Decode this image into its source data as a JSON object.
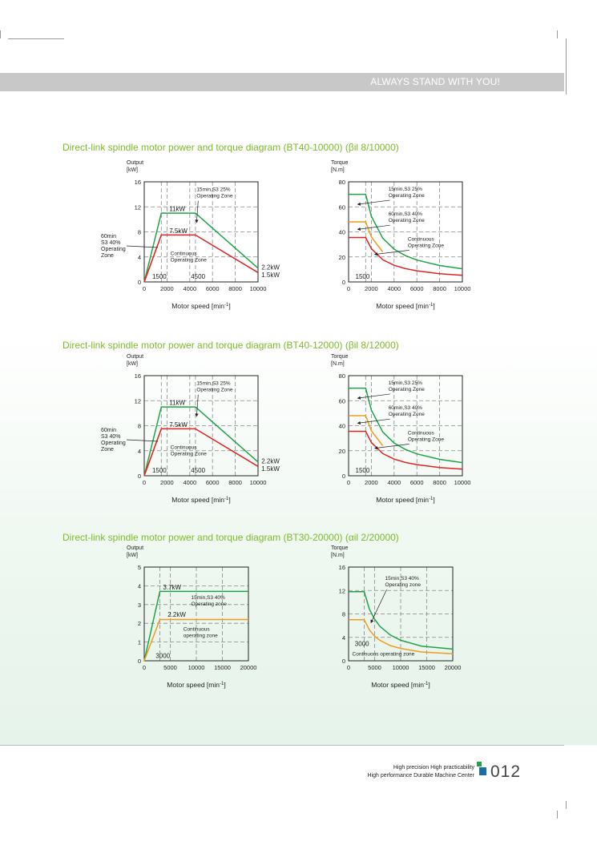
{
  "banner": {
    "slogan": "ALWAYS STAND WITH YOU!"
  },
  "sections": [
    {
      "heading": "Direct-link spindle motor power and torque diagram (BT40-10000) (βil 8/10000)"
    },
    {
      "heading": "Direct-link spindle motor power and torque diagram (BT40-12000) (βil 8/12000)"
    },
    {
      "heading": "Direct-link spindle motor power and torque diagram (BT30-20000) (αil 2/20000)"
    }
  ],
  "footer": {
    "tagline1": "High precision High practicability",
    "tagline2": "High performance Durable Machine Center",
    "page_number": "012"
  },
  "colors": {
    "green": "#1fa348",
    "orange": "#f29a1e",
    "red": "#e02424",
    "heading": "#7dbb2a"
  },
  "chart_data": [
    {
      "type": "line",
      "title": "Output",
      "ylabel_top": "Output",
      "ylabel_unit": "[kW]",
      "xlabel": "Motor speed [min",
      "xlabel_sup": "-1",
      "xlabel_end": "]",
      "xlim": [
        0,
        10000
      ],
      "ylim": [
        0,
        16
      ],
      "xticks": [
        0,
        2000,
        4000,
        6000,
        8000,
        10000
      ],
      "yticks": [
        0,
        4,
        8,
        12,
        16
      ],
      "vlines": [
        1500,
        2000,
        4000,
        4500,
        6000,
        8000
      ],
      "hlines": [
        4,
        8,
        12
      ],
      "series": [
        {
          "color": "green",
          "points": [
            [
              0,
              0
            ],
            [
              1500,
              11
            ],
            [
              4500,
              11
            ],
            [
              10000,
              2.2
            ]
          ]
        },
        {
          "color": "orange",
          "points": [
            [
              0,
              0
            ],
            [
              1500,
              7.5
            ]
          ]
        },
        {
          "color": "red",
          "points": [
            [
              0,
              0
            ],
            [
              1500,
              7.5
            ],
            [
              4500,
              7.5
            ],
            [
              10000,
              1.5
            ]
          ]
        }
      ],
      "labels": [
        {
          "text": "11kW",
          "x": 2200,
          "y": 11.3
        },
        {
          "text": "7.5kW",
          "x": 2200,
          "y": 7.8
        },
        {
          "text": "1500",
          "x": 700,
          "y": 0.5
        },
        {
          "text": "4500",
          "x": 4100,
          "y": 0.5
        },
        {
          "text": "2.2kW",
          "x": 10300,
          "y": 2.0
        },
        {
          "text": "1.5kW",
          "x": 10300,
          "y": 0.8
        }
      ],
      "zones": [
        {
          "lines": [
            "15min,S3 25%",
            "Operating Zone"
          ],
          "x": 4600,
          "y": 14.5,
          "arrow": [
            4600,
            9.5
          ]
        },
        {
          "lines": [
            "Continuous",
            "Operating Zone"
          ],
          "x": 2300,
          "y": 4.3,
          "arrow": null
        }
      ],
      "side_label": [
        "60min",
        "S3 40%",
        "Operating",
        "Zone"
      ]
    },
    {
      "type": "line",
      "ylabel_top": "Torque",
      "ylabel_unit": "[N.m]",
      "xlabel": "Motor speed [min",
      "xlabel_sup": "-1",
      "xlabel_end": "]",
      "xlim": [
        0,
        10000
      ],
      "ylim": [
        0,
        80
      ],
      "xticks": [
        0,
        2000,
        4000,
        6000,
        8000,
        10000
      ],
      "yticks": [
        0,
        20,
        40,
        60,
        80
      ],
      "vlines": [
        1500,
        2000,
        4000,
        6000,
        8000
      ],
      "hlines": [
        20,
        40,
        60
      ],
      "series": [
        {
          "color": "green",
          "points": [
            [
              0,
              70
            ],
            [
              1500,
              70
            ],
            [
              2000,
              52.5
            ],
            [
              3000,
              35
            ],
            [
              4000,
              26.2
            ],
            [
              5000,
              21
            ],
            [
              6000,
              17.5
            ],
            [
              8000,
              13.1
            ],
            [
              10000,
              10.5
            ]
          ]
        },
        {
          "color": "orange",
          "points": [
            [
              0,
              48
            ],
            [
              1500,
              48
            ],
            [
              2000,
              36
            ],
            [
              3000,
              24
            ]
          ]
        },
        {
          "color": "red",
          "points": [
            [
              0,
              35.5
            ],
            [
              1500,
              35.5
            ],
            [
              2000,
              26.6
            ],
            [
              3000,
              17.7
            ],
            [
              4000,
              13.3
            ],
            [
              5000,
              10.6
            ],
            [
              6000,
              8.9
            ],
            [
              8000,
              6.6
            ],
            [
              10000,
              5.3
            ]
          ]
        }
      ],
      "labels": [
        {
          "text": "1500",
          "x": 600,
          "y": 2.5
        }
      ],
      "zones": [
        {
          "lines": [
            "15min,S3 25%",
            "Operating Zone"
          ],
          "x": 3500,
          "y": 73,
          "arrow": [
            800,
            62
          ]
        },
        {
          "lines": [
            "60min,S3 40%",
            "Operating Zone"
          ],
          "x": 3500,
          "y": 53,
          "arrow": [
            800,
            42
          ]
        },
        {
          "lines": [
            "Continuous",
            "Operating Zone"
          ],
          "x": 5200,
          "y": 33,
          "arrow": [
            2300,
            22
          ]
        }
      ]
    },
    {
      "type": "line",
      "ylabel_top": "Output",
      "ylabel_unit": "[kW]",
      "xlabel": "Motor speed [min",
      "xlabel_sup": "-1",
      "xlabel_end": "]",
      "xlim": [
        0,
        10000
      ],
      "ylim": [
        0,
        16
      ],
      "xticks": [
        0,
        2000,
        4000,
        6000,
        8000,
        10000
      ],
      "yticks": [
        0,
        4,
        8,
        12,
        16
      ],
      "vlines": [
        1500,
        2000,
        4000,
        4500,
        6000,
        8000
      ],
      "hlines": [
        4,
        8,
        12
      ],
      "series": [
        {
          "color": "green",
          "points": [
            [
              0,
              0
            ],
            [
              1500,
              11
            ],
            [
              4500,
              11
            ],
            [
              10000,
              2.2
            ]
          ]
        },
        {
          "color": "orange",
          "points": [
            [
              0,
              0
            ],
            [
              1500,
              7.5
            ]
          ]
        },
        {
          "color": "red",
          "points": [
            [
              0,
              0
            ],
            [
              1500,
              7.5
            ],
            [
              4500,
              7.5
            ],
            [
              10000,
              1.5
            ]
          ]
        }
      ],
      "labels": [
        {
          "text": "11kW",
          "x": 2200,
          "y": 11.3
        },
        {
          "text": "7.5kW",
          "x": 2200,
          "y": 7.8
        },
        {
          "text": "1500",
          "x": 700,
          "y": 0.5
        },
        {
          "text": "4500",
          "x": 4100,
          "y": 0.5
        },
        {
          "text": "2.2kW",
          "x": 10300,
          "y": 2.0
        },
        {
          "text": "1.5kW",
          "x": 10300,
          "y": 0.8
        }
      ],
      "zones": [
        {
          "lines": [
            "15min,S3 25%",
            "Operating Zone"
          ],
          "x": 4600,
          "y": 14.5,
          "arrow": [
            4600,
            9.5
          ]
        },
        {
          "lines": [
            "Continuous",
            "Operating Zone"
          ],
          "x": 2300,
          "y": 4.3,
          "arrow": null
        }
      ],
      "side_label": [
        "60min",
        "S3 40%",
        "Operating",
        "Zone"
      ]
    },
    {
      "type": "line",
      "ylabel_top": "Torque",
      "ylabel_unit": "[N.m]",
      "xlabel": "Motor speed [min",
      "xlabel_sup": "-1",
      "xlabel_end": "]",
      "xlim": [
        0,
        10000
      ],
      "ylim": [
        0,
        80
      ],
      "xticks": [
        0,
        2000,
        4000,
        6000,
        8000,
        10000
      ],
      "yticks": [
        0,
        20,
        40,
        60,
        80
      ],
      "vlines": [
        1500,
        2000,
        4000,
        6000,
        8000
      ],
      "hlines": [
        20,
        40,
        60
      ],
      "series": [
        {
          "color": "green",
          "points": [
            [
              0,
              70
            ],
            [
              1500,
              70
            ],
            [
              2000,
              52.5
            ],
            [
              3000,
              35
            ],
            [
              4000,
              26.2
            ],
            [
              5000,
              21
            ],
            [
              6000,
              17.5
            ],
            [
              8000,
              13.1
            ],
            [
              10000,
              10.5
            ]
          ]
        },
        {
          "color": "orange",
          "points": [
            [
              0,
              48
            ],
            [
              1500,
              48
            ],
            [
              2000,
              36
            ],
            [
              3000,
              24
            ]
          ]
        },
        {
          "color": "red",
          "points": [
            [
              0,
              35.5
            ],
            [
              1500,
              35.5
            ],
            [
              2000,
              26.6
            ],
            [
              3000,
              17.7
            ],
            [
              4000,
              13.3
            ],
            [
              5000,
              10.6
            ],
            [
              6000,
              8.9
            ],
            [
              8000,
              6.6
            ],
            [
              10000,
              5.3
            ]
          ]
        }
      ],
      "labels": [
        {
          "text": "1500",
          "x": 600,
          "y": 2.5
        }
      ],
      "zones": [
        {
          "lines": [
            "15min,S3 25%",
            "Operating Zone"
          ],
          "x": 3500,
          "y": 73,
          "arrow": [
            800,
            62
          ]
        },
        {
          "lines": [
            "60min,S3 40%",
            "Operating Zone"
          ],
          "x": 3500,
          "y": 53,
          "arrow": [
            800,
            42
          ]
        },
        {
          "lines": [
            "Continuous",
            "Operating Zone"
          ],
          "x": 5200,
          "y": 33,
          "arrow": [
            2300,
            22
          ]
        }
      ]
    },
    {
      "type": "line",
      "ylabel_top": "Output",
      "ylabel_unit": "[kW]",
      "xlabel": "Motor speed [min",
      "xlabel_sup": "-1",
      "xlabel_end": "]",
      "xlim": [
        0,
        20000
      ],
      "ylim": [
        0,
        5
      ],
      "xticks": [
        0,
        5000,
        10000,
        15000,
        20000
      ],
      "yticks": [
        0,
        1,
        2,
        3,
        4,
        5
      ],
      "vlines": [
        3000,
        5000,
        10000,
        15000
      ],
      "hlines": [
        1,
        2,
        3,
        4
      ],
      "series": [
        {
          "color": "green",
          "points": [
            [
              0,
              0
            ],
            [
              3000,
              3.7
            ],
            [
              20000,
              3.7
            ]
          ]
        },
        {
          "color": "orange",
          "points": [
            [
              0,
              0
            ],
            [
              3000,
              2.2
            ],
            [
              20000,
              2.2
            ]
          ]
        }
      ],
      "labels": [
        {
          "text": "3.7kW",
          "x": 3600,
          "y": 3.8
        },
        {
          "text": "2.2kW",
          "x": 4500,
          "y": 2.35
        },
        {
          "text": "3000",
          "x": 2200,
          "y": 0.15
        }
      ],
      "zones": [
        {
          "lines": [
            "15min,S3 40%",
            "Operating zone"
          ],
          "x": 9000,
          "y": 3.3,
          "arrow": null
        },
        {
          "lines": [
            "Continuous",
            "operating zone"
          ],
          "x": 7500,
          "y": 1.6,
          "arrow": null
        }
      ]
    },
    {
      "type": "line",
      "ylabel_top": "Torque",
      "ylabel_unit": "[N.m]",
      "xlabel": "Motor speed [min",
      "xlabel_sup": "-1",
      "xlabel_end": "]",
      "xlim": [
        0,
        20000
      ],
      "ylim": [
        0,
        16
      ],
      "xticks": [
        0,
        5000,
        10000,
        15000,
        20000
      ],
      "yticks": [
        0,
        4,
        8,
        12,
        16
      ],
      "vlines": [
        3000,
        5000,
        10000,
        15000
      ],
      "hlines": [
        4,
        8,
        12
      ],
      "series": [
        {
          "color": "green",
          "points": [
            [
              0,
              11.8
            ],
            [
              3000,
              11.8
            ],
            [
              4000,
              8.8
            ],
            [
              5000,
              7.1
            ],
            [
              6000,
              5.9
            ],
            [
              8000,
              4.4
            ],
            [
              10000,
              3.5
            ],
            [
              14000,
              2.5
            ],
            [
              20000,
              2.0
            ]
          ]
        },
        {
          "color": "orange",
          "points": [
            [
              0,
              7.0
            ],
            [
              3000,
              7.0
            ],
            [
              4000,
              5.25
            ],
            [
              5000,
              4.2
            ],
            [
              6000,
              3.5
            ],
            [
              8000,
              2.6
            ],
            [
              10000,
              2.1
            ],
            [
              14000,
              1.5
            ],
            [
              20000,
              1.2
            ]
          ]
        }
      ],
      "labels": [
        {
          "text": "3000",
          "x": 1200,
          "y": 2.5
        }
      ],
      "zones": [
        {
          "lines": [
            "15min,S3 40%",
            "Operating zone"
          ],
          "x": 7000,
          "y": 13.8,
          "arrow": [
            4300,
            6.5
          ]
        },
        {
          "lines": [
            "Continuous operating zone"
          ],
          "x": 700,
          "y": 0.9,
          "arrow": null
        }
      ]
    }
  ]
}
